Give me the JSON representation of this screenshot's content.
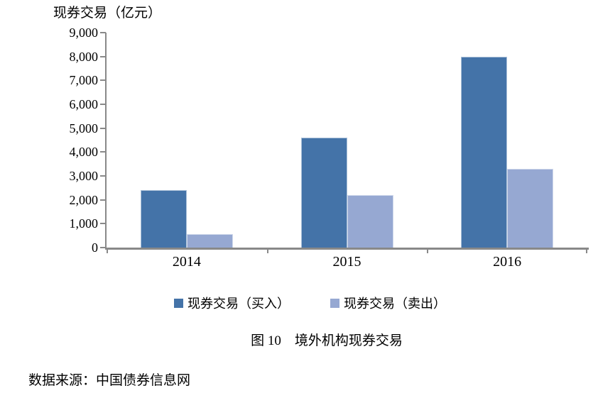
{
  "chart_data": {
    "type": "bar",
    "title": "现券交易（亿元）",
    "categories": [
      "2014",
      "2015",
      "2016"
    ],
    "series": [
      {
        "name": "现券交易（买入）",
        "color": "#4473A8",
        "values": [
          2400,
          4600,
          8000
        ]
      },
      {
        "name": "现券交易（卖出）",
        "color": "#96A8D2",
        "values": [
          550,
          2200,
          3300
        ]
      }
    ],
    "ylim": [
      0,
      9000
    ],
    "y_tick_interval": 1000,
    "y_tick_labels": [
      "9,000",
      "8,000",
      "7,000",
      "6,000",
      "5,000",
      "4,000",
      "3,000",
      "2,000",
      "1,000",
      "0"
    ],
    "xlabel": "",
    "ylabel": "",
    "grid": false,
    "legend_position": "bottom",
    "axis_color": "#898989"
  },
  "caption": "图 10　境外机构现券交易",
  "source": "数据来源：中国债券信息网"
}
